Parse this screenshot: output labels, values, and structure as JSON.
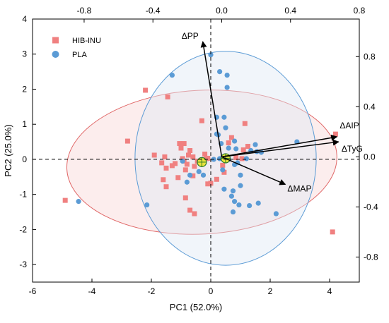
{
  "chart_data": {
    "type": "scatter",
    "subtype": "pca-biplot",
    "xlabel": "PC1 (52.0%)",
    "ylabel": "PC2 (25.0%)",
    "xlim": [
      -6,
      5
    ],
    "ylim": [
      -3.5,
      4
    ],
    "x_ticks": [
      -6,
      -4,
      -2,
      0,
      2,
      4
    ],
    "y_ticks": [
      -3,
      -2,
      -1,
      0,
      1,
      2,
      3,
      4
    ],
    "top_axis": {
      "lim": [
        -1.1,
        0.8
      ],
      "ticks": [
        -0.8,
        -0.4,
        0.0,
        0.4,
        0.8
      ]
    },
    "right_axis": {
      "lim": [
        -1.0,
        1.1
      ],
      "ticks": [
        -0.8,
        -0.4,
        0.0,
        0.4,
        0.8
      ]
    },
    "grid": false,
    "legend": {
      "placement": "top-left"
    },
    "series": [
      {
        "name": "HIB-INU",
        "marker": "square",
        "color": "#f08080",
        "points": [
          [
            -4.9,
            -1.17
          ],
          [
            -2.8,
            0.52
          ],
          [
            -2.2,
            1.97
          ],
          [
            -1.9,
            0.12
          ],
          [
            -1.65,
            -0.1
          ],
          [
            -1.55,
            0.07
          ],
          [
            -1.45,
            1.78
          ],
          [
            -1.6,
            -0.58
          ],
          [
            -1.5,
            -0.78
          ],
          [
            -1.5,
            -0.25
          ],
          [
            -1.3,
            -0.18
          ],
          [
            -1.2,
            -0.12
          ],
          [
            -1.1,
            -0.52
          ],
          [
            -1.05,
            0.45
          ],
          [
            -1.0,
            0.32
          ],
          [
            -0.95,
            0.02
          ],
          [
            -0.9,
            0.45
          ],
          [
            -0.85,
            -0.3
          ],
          [
            -0.8,
            -0.14
          ],
          [
            -0.9,
            -0.05
          ],
          [
            -0.75,
            0.12
          ],
          [
            -0.7,
            0.25
          ],
          [
            -0.6,
            0.07
          ],
          [
            -0.55,
            -0.2
          ],
          [
            -0.85,
            -1.1
          ],
          [
            -0.7,
            -1.45
          ],
          [
            -0.55,
            -1.55
          ],
          [
            -0.6,
            -0.47
          ],
          [
            -0.3,
            1.1
          ],
          [
            -0.25,
            -0.07
          ],
          [
            -0.2,
            0.15
          ],
          [
            -0.15,
            0.02
          ],
          [
            -0.1,
            0.03
          ],
          [
            -0.1,
            -0.7
          ],
          [
            0.0,
            -0.68
          ],
          [
            0.2,
            -0.57
          ],
          [
            0.4,
            -0.17
          ],
          [
            0.45,
            -0.37
          ],
          [
            0.6,
            0.47
          ],
          [
            0.7,
            0.62
          ],
          [
            0.85,
            0.05
          ],
          [
            1.05,
            0.02
          ],
          [
            1.1,
            0.27
          ],
          [
            1.15,
            1.02
          ],
          [
            1.25,
            0.37
          ],
          [
            -0.45,
            -0.05
          ],
          [
            4.2,
            0.72
          ],
          [
            4.1,
            -2.07
          ]
        ]
      },
      {
        "name": "PLA",
        "marker": "circle",
        "color": "#5b9bd5",
        "points": [
          [
            -4.45,
            -1.2
          ],
          [
            -2.15,
            -1.3
          ],
          [
            -1.3,
            2.4
          ],
          [
            -0.95,
            -0.05
          ],
          [
            -0.8,
            -0.65
          ],
          [
            -0.7,
            -0.45
          ],
          [
            -0.4,
            -0.35
          ],
          [
            -0.25,
            -0.45
          ],
          [
            0.0,
            2.98
          ],
          [
            0.1,
            0.0
          ],
          [
            0.2,
            1.2
          ],
          [
            0.2,
            0.72
          ],
          [
            0.25,
            0.7
          ],
          [
            0.3,
            2.5
          ],
          [
            0.3,
            0.02
          ],
          [
            0.35,
            0.45
          ],
          [
            0.4,
            -0.3
          ],
          [
            0.45,
            1.2
          ],
          [
            0.45,
            -0.85
          ],
          [
            0.5,
            0.9
          ],
          [
            0.55,
            2.4
          ],
          [
            0.55,
            2.05
          ],
          [
            0.6,
            0.32
          ],
          [
            0.6,
            0.0
          ],
          [
            0.7,
            -1.05
          ],
          [
            0.75,
            -0.9
          ],
          [
            0.75,
            -1.5
          ],
          [
            0.8,
            -0.15
          ],
          [
            0.8,
            -1.2
          ],
          [
            0.8,
            0.52
          ],
          [
            0.85,
            0.3
          ],
          [
            0.9,
            -0.1
          ],
          [
            0.95,
            -1.3
          ],
          [
            1.0,
            -0.75
          ],
          [
            1.0,
            -0.45
          ],
          [
            1.2,
            0.02
          ],
          [
            1.3,
            -1.32
          ],
          [
            1.35,
            0.25
          ],
          [
            1.5,
            0.42
          ],
          [
            1.55,
            0.22
          ],
          [
            1.6,
            -1.25
          ],
          [
            1.7,
            0.2
          ],
          [
            2.2,
            -1.55
          ],
          [
            2.9,
            0.5
          ]
        ]
      }
    ],
    "group_means": [
      {
        "name": "HIB-INU",
        "x": -0.3,
        "y": -0.08
      },
      {
        "name": "PLA",
        "x": 0.5,
        "y": 0.03
      }
    ],
    "ellipses": [
      {
        "name": "HIB-INU",
        "cx": -0.3,
        "cy": -0.08,
        "rx": 4.55,
        "ry": 2.05,
        "angle": 3,
        "stroke": "#e06666",
        "fill": "#f8d7d7"
      },
      {
        "name": "PLA",
        "cx": 0.5,
        "cy": 0.03,
        "rx": 3.05,
        "ry": 3.05,
        "angle": 0,
        "stroke": "#5b9bd5",
        "fill": "#dfe8f5"
      }
    ],
    "loadings": [
      {
        "label": "ΔPP",
        "x": -0.11,
        "y": 0.92
      },
      {
        "label": "ΔAIP",
        "x": 0.67,
        "y": 0.16
      },
      {
        "label": "ΔTyG",
        "x": 0.68,
        "y": 0.12
      },
      {
        "label": "ΔMAP",
        "x": 0.37,
        "y": -0.22
      }
    ]
  }
}
